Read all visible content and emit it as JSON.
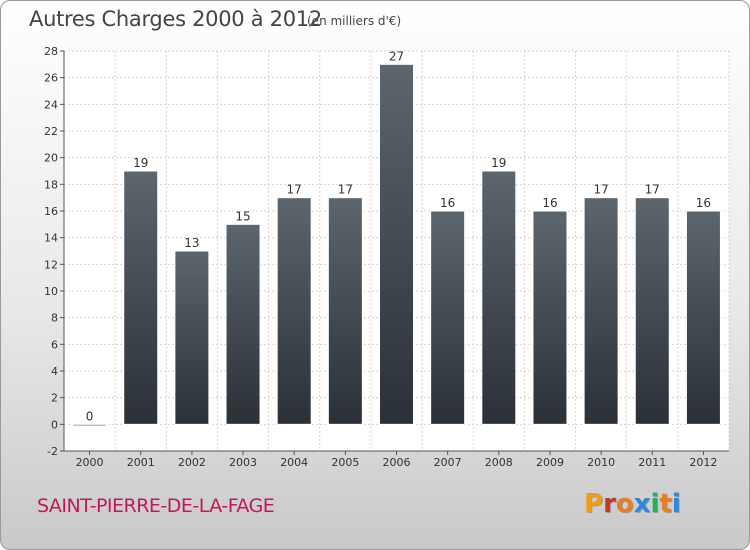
{
  "header": {
    "title": "Autres Charges 2000 à 2012",
    "subtitle": "(en milliers d'€)"
  },
  "footer": {
    "commune": "SAINT-PIERRE-DE-LA-FAGE",
    "logo": "Proxiti"
  },
  "colors": {
    "bar_top": "#5d656d",
    "bar_bottom": "#2a3036",
    "axis": "#555555",
    "grid": "#d4d4d4",
    "commune_text": "#c2185b",
    "logo_letters": [
      "#f39c12",
      "#c0392b",
      "#e67e22",
      "#2e86de",
      "#27ae60",
      "#e67e22",
      "#2e86de"
    ]
  },
  "chart_data": {
    "type": "bar",
    "title": "Autres Charges 2000 à 2012",
    "subtitle": "(en milliers d'€)",
    "categories": [
      "2000",
      "2001",
      "2002",
      "2003",
      "2004",
      "2005",
      "2006",
      "2007",
      "2008",
      "2009",
      "2010",
      "2011",
      "2012"
    ],
    "values": [
      0,
      19,
      13,
      15,
      17,
      17,
      27,
      16,
      19,
      16,
      17,
      17,
      16
    ],
    "data_labels": [
      "0",
      "19",
      "13",
      "15",
      "17",
      "17",
      "27",
      "16",
      "19",
      "16",
      "17",
      "17",
      "16"
    ],
    "ylim": [
      -2,
      28
    ],
    "yticks": [
      -2,
      0,
      2,
      4,
      6,
      8,
      10,
      12,
      14,
      16,
      18,
      20,
      22,
      24,
      26,
      28
    ],
    "xlabel": "",
    "ylabel": "",
    "grid": true
  }
}
